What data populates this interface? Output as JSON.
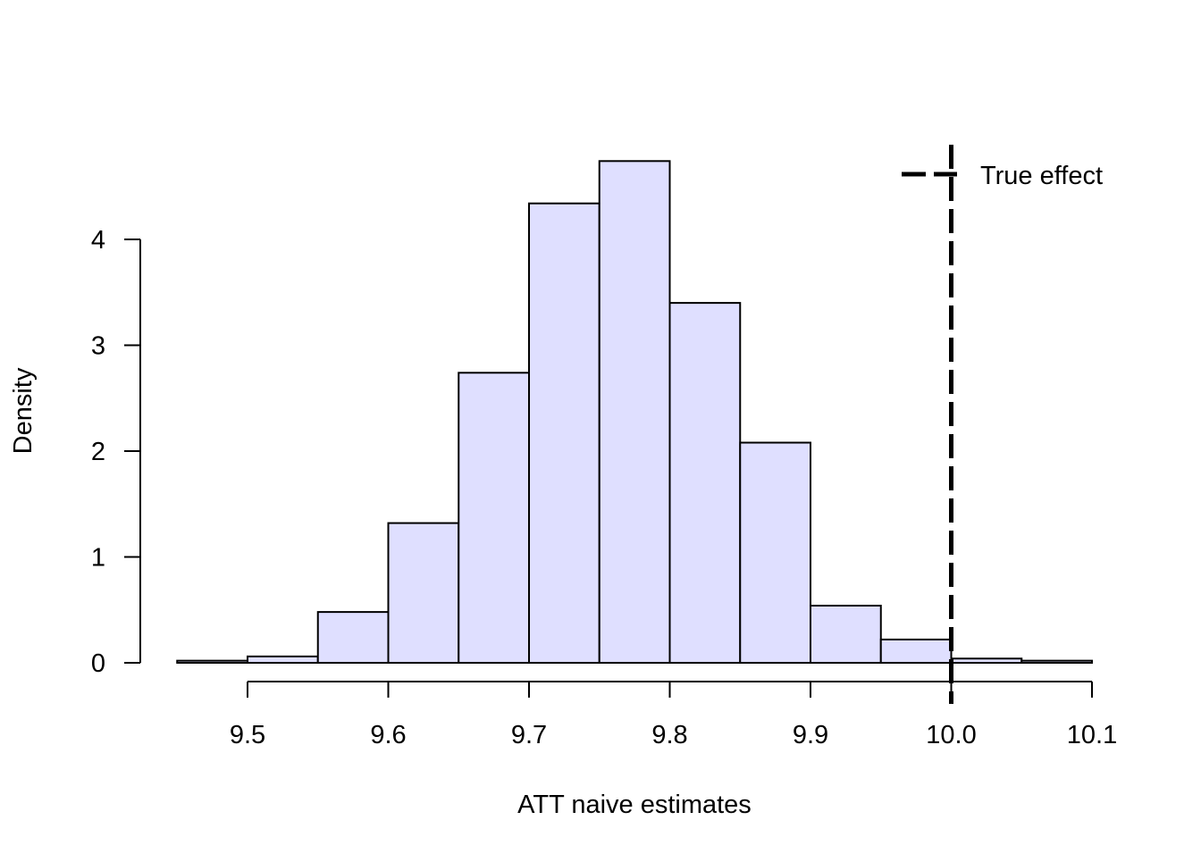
{
  "chart_data": {
    "type": "bar",
    "subtype": "histogram",
    "xlabel": "ATT naive estimates",
    "ylabel": "Density",
    "bin_edges": [
      9.45,
      9.5,
      9.55,
      9.6,
      9.65,
      9.7,
      9.75,
      9.8,
      9.85,
      9.9,
      9.95,
      10.0,
      10.05,
      10.1
    ],
    "values": [
      0.02,
      0.06,
      0.48,
      1.32,
      2.74,
      4.34,
      4.74,
      3.4,
      2.08,
      0.54,
      0.22,
      0.04,
      0.02
    ],
    "xlim": [
      9.45,
      10.1
    ],
    "ylim": [
      0,
      4.9
    ],
    "x_ticks": [
      9.5,
      9.6,
      9.7,
      9.8,
      9.9,
      10.0,
      10.1
    ],
    "x_tick_labels": [
      "9.5",
      "9.6",
      "9.7",
      "9.8",
      "9.9",
      "10.0",
      "10.1"
    ],
    "y_ticks": [
      0,
      1,
      2,
      3,
      4
    ],
    "y_tick_labels": [
      "0",
      "1",
      "2",
      "3",
      "4"
    ],
    "bar_color": "#dfdfff",
    "bar_border_color": "#000000",
    "reference_line": {
      "x": 10.0,
      "style": "dashed",
      "color": "#000000",
      "label": "True effect"
    },
    "legend": {
      "position": "top-right",
      "entries": [
        "True effect"
      ]
    },
    "grid": false
  }
}
